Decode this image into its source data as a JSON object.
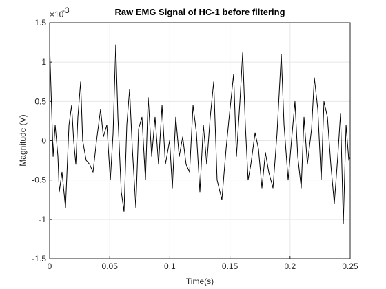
{
  "chart_data": {
    "type": "line",
    "title": "Raw EMG Signal of HC-1 before filtering",
    "x_label": "Time(s)",
    "y_label": "Magnitude (V)",
    "y_multiplier_base": "×10",
    "y_multiplier_exponent": "-3",
    "xlim": [
      0,
      0.25
    ],
    "xticks": [
      0,
      0.05,
      0.1,
      0.15,
      0.2,
      0.25
    ],
    "ylim": [
      -1.5,
      1.5
    ],
    "yticks": [
      -1.5,
      -1,
      -0.5,
      0,
      0.5,
      1,
      1.5
    ],
    "grid": true,
    "series": [
      {
        "color": "#000000",
        "x": [
          0,
          0.0029,
          0.0046,
          0.0069,
          0.008,
          0.0103,
          0.0132,
          0.0161,
          0.0183,
          0.02,
          0.0218,
          0.0235,
          0.0258,
          0.0275,
          0.0304,
          0.0333,
          0.0361,
          0.039,
          0.0424,
          0.0447,
          0.0476,
          0.0505,
          0.0528,
          0.055,
          0.0568,
          0.0596,
          0.0619,
          0.0642,
          0.0665,
          0.0688,
          0.0717,
          0.074,
          0.0768,
          0.0797,
          0.082,
          0.0849,
          0.0877,
          0.0906,
          0.0935,
          0.0963,
          0.0998,
          0.1021,
          0.1049,
          0.1078,
          0.1107,
          0.1135,
          0.1164,
          0.1193,
          0.1221,
          0.125,
          0.1279,
          0.1307,
          0.1336,
          0.1365,
          0.1393,
          0.1433,
          0.1468,
          0.1497,
          0.1531,
          0.1554,
          0.1583,
          0.1606,
          0.1628,
          0.1651,
          0.1674,
          0.1709,
          0.1737,
          0.1766,
          0.1795,
          0.1823,
          0.1858,
          0.1892,
          0.1927,
          0.195,
          0.1984,
          0.2012,
          0.2041,
          0.2064,
          0.2093,
          0.2116,
          0.2144,
          0.2179,
          0.2202,
          0.2231,
          0.2259,
          0.2282,
          0.2311,
          0.2339,
          0.2368,
          0.2397,
          0.242,
          0.2443,
          0.2466,
          0.2489,
          0.25
        ],
        "values": [
          1.22,
          -0.2,
          0.2,
          -0.2,
          -0.65,
          -0.4,
          -0.85,
          0.2,
          0.45,
          0.0,
          -0.3,
          0.3,
          0.75,
          0.0,
          -0.25,
          -0.3,
          -0.4,
          0.0,
          0.4,
          0.05,
          0.2,
          -0.5,
          0.1,
          1.22,
          0.3,
          -0.65,
          -0.9,
          0.2,
          0.65,
          -0.1,
          -0.85,
          0.15,
          0.3,
          -0.5,
          0.55,
          -0.2,
          0.3,
          -0.3,
          0.45,
          -0.3,
          0.0,
          -0.6,
          0.3,
          -0.2,
          0.05,
          -0.3,
          -0.4,
          0.45,
          0.1,
          -0.65,
          0.2,
          -0.3,
          0.3,
          0.75,
          -0.5,
          -0.75,
          -0.1,
          0.35,
          0.85,
          -0.2,
          0.5,
          1.12,
          0.2,
          -0.5,
          -0.3,
          0.1,
          -0.1,
          -0.6,
          -0.15,
          -0.4,
          -0.6,
          0.1,
          1.1,
          0.2,
          -0.5,
          0.0,
          0.5,
          -0.2,
          -0.6,
          0.3,
          -0.3,
          0.15,
          0.8,
          0.4,
          -0.5,
          0.5,
          0.3,
          -0.3,
          -0.8,
          -0.2,
          0.35,
          -1.05,
          0.2,
          -0.25,
          -0.2
        ]
      }
    ]
  }
}
